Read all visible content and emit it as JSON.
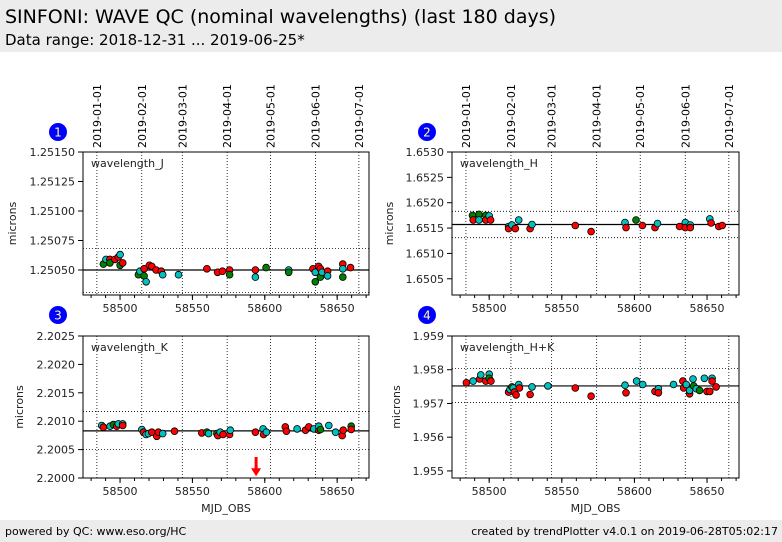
{
  "header": {
    "title": "SINFONI: WAVE QC (nominal wavelengths) (last 180 days)",
    "subtitle": "Data range: 2018-12-31 ... 2019-06-25*"
  },
  "footer": {
    "left": "powered by QC: www.eso.org/HC",
    "right": "created by trendPlotter v4.0.1 on 2019-06-28T05:02:17"
  },
  "colors": {
    "r": "#ff0000",
    "c": "#00c0c0",
    "g": "#008000",
    "badge": "#0000ff",
    "badge_text": "#ffff99",
    "arrow": "#ff0000"
  },
  "date_lines": [
    {
      "label": "2019-01-01",
      "mjd": 58484
    },
    {
      "label": "2019-02-01",
      "mjd": 58515
    },
    {
      "label": "2019-03-01",
      "mjd": 58543
    },
    {
      "label": "2019-04-01",
      "mjd": 58574
    },
    {
      "label": "2019-05-01",
      "mjd": 58604
    },
    {
      "label": "2019-06-01",
      "mjd": 58635
    },
    {
      "label": "2019-07-01",
      "mjd": 58665
    }
  ],
  "chart_data": [
    {
      "type": "scatter",
      "panel": "1",
      "title": "wavelength_J",
      "ylabel": "microns",
      "xlabel": "",
      "xlim": [
        58474.4,
        58672
      ],
      "xticks": [
        58500,
        58550,
        58600,
        58650
      ],
      "ylim": [
        1.250288,
        1.2515
      ],
      "yticks": [
        1.2505,
        1.25075,
        1.251,
        1.25125,
        1.2515
      ],
      "ytick_labels": [
        "1.25050",
        "1.25075",
        "1.25100",
        "1.25125",
        "1.25150"
      ],
      "reference": 1.2505,
      "limits": [
        1.25031,
        1.250683
      ],
      "points": [
        [
          58488.5,
          1.25055,
          "g"
        ],
        [
          58490.3,
          1.25059,
          "c"
        ],
        [
          58493,
          1.25059,
          "r"
        ],
        [
          58493,
          1.25056,
          "g"
        ],
        [
          58496.5,
          1.25059,
          "r"
        ],
        [
          58498.8,
          1.25061,
          "r"
        ],
        [
          58500,
          1.25063,
          "c"
        ],
        [
          58500,
          1.25054,
          "g"
        ],
        [
          58501.8,
          1.25056,
          "r"
        ],
        [
          58512.7,
          1.25046,
          "g"
        ],
        [
          58513.8,
          1.25049,
          "c"
        ],
        [
          58516.6,
          1.25051,
          "r"
        ],
        [
          58516.6,
          1.25045,
          "g"
        ],
        [
          58518,
          1.2504,
          "c"
        ],
        [
          58520.3,
          1.25054,
          "r"
        ],
        [
          58521.9,
          1.25053,
          "r"
        ],
        [
          58524.9,
          1.2505,
          "r"
        ],
        [
          58528.4,
          1.25049,
          "r"
        ],
        [
          58529.5,
          1.25046,
          "c"
        ],
        [
          58540.4,
          1.25046,
          "c"
        ],
        [
          58560,
          1.25051,
          "r"
        ],
        [
          58567.4,
          1.25048,
          "r"
        ],
        [
          58570.8,
          1.25049,
          "r"
        ],
        [
          58575.7,
          1.2505,
          "r"
        ],
        [
          58575.7,
          1.25046,
          "g"
        ],
        [
          58593.5,
          1.2505,
          "r"
        ],
        [
          58593.5,
          1.25044,
          "c"
        ],
        [
          58600.9,
          1.25052,
          "g"
        ],
        [
          58616.5,
          1.2505,
          "c"
        ],
        [
          58616.5,
          1.25048,
          "g"
        ],
        [
          58633.3,
          1.25051,
          "r"
        ],
        [
          58634.9,
          1.25048,
          "c"
        ],
        [
          58634.9,
          1.2504,
          "g"
        ],
        [
          58637.2,
          1.25053,
          "r"
        ],
        [
          58638.4,
          1.25051,
          "r"
        ],
        [
          58638.4,
          1.25044,
          "g"
        ],
        [
          58639.5,
          1.25048,
          "c"
        ],
        [
          58643.4,
          1.25049,
          "r"
        ],
        [
          58643.4,
          1.25045,
          "c"
        ],
        [
          58653.9,
          1.25055,
          "r"
        ],
        [
          58653.9,
          1.25051,
          "c"
        ],
        [
          58653.9,
          1.25044,
          "g"
        ],
        [
          58659.2,
          1.25052,
          "r"
        ]
      ]
    },
    {
      "type": "scatter",
      "panel": "2",
      "title": "wavelength_H",
      "ylabel": "microns",
      "xlabel": "",
      "xlim": [
        58474.4,
        58672
      ],
      "xticks": [
        58500,
        58550,
        58600,
        58650
      ],
      "ylim": [
        1.65018,
        1.653
      ],
      "yticks": [
        1.6505,
        1.651,
        1.6515,
        1.652,
        1.6525,
        1.653
      ],
      "ytick_labels": [
        "1.6505",
        "1.6510",
        "1.6515",
        "1.6520",
        "1.6525",
        "1.6530"
      ],
      "reference": 1.65157,
      "limits": [
        1.65131,
        1.65183
      ],
      "points": [
        [
          58488.5,
          1.65175,
          "g"
        ],
        [
          58489,
          1.65166,
          "r"
        ],
        [
          58493,
          1.65177,
          "g"
        ],
        [
          58493,
          1.65166,
          "c"
        ],
        [
          58497.7,
          1.65175,
          "g"
        ],
        [
          58497.7,
          1.65166,
          "r"
        ],
        [
          58500,
          1.65174,
          "c"
        ],
        [
          58501,
          1.65166,
          "r"
        ],
        [
          58513.4,
          1.65153,
          "c"
        ],
        [
          58513.4,
          1.65149,
          "r"
        ],
        [
          58515.7,
          1.65156,
          "c"
        ],
        [
          58518,
          1.65149,
          "r"
        ],
        [
          58520.3,
          1.65166,
          "c"
        ],
        [
          58528.2,
          1.65149,
          "r"
        ],
        [
          58529.5,
          1.65157,
          "c"
        ],
        [
          58559.3,
          1.65155,
          "r"
        ],
        [
          58570.2,
          1.65143,
          "r"
        ],
        [
          58593.5,
          1.65161,
          "c"
        ],
        [
          58594.2,
          1.65151,
          "r"
        ],
        [
          58601.1,
          1.65166,
          "g"
        ],
        [
          58605.5,
          1.65155,
          "r"
        ],
        [
          58614.2,
          1.65151,
          "r"
        ],
        [
          58615.9,
          1.65159,
          "c"
        ],
        [
          58631.1,
          1.65153,
          "r"
        ],
        [
          58635,
          1.65161,
          "c"
        ],
        [
          58635,
          1.65151,
          "r"
        ],
        [
          58638.5,
          1.65156,
          "c"
        ],
        [
          58638.5,
          1.65151,
          "r"
        ],
        [
          58651.9,
          1.65168,
          "c"
        ],
        [
          58652.8,
          1.6516,
          "r"
        ],
        [
          58658.1,
          1.65153,
          "r"
        ],
        [
          58660.4,
          1.65155,
          "r"
        ]
      ]
    },
    {
      "type": "scatter",
      "panel": "3",
      "title": "wavelength_K",
      "ylabel": "microns",
      "xlabel": "MJD_OBS",
      "xlim": [
        58474.4,
        58672
      ],
      "xticks": [
        58500,
        58550,
        58600,
        58650
      ],
      "ylim": [
        2.2,
        2.2025
      ],
      "yticks": [
        2.2,
        2.2005,
        2.201,
        2.2015,
        2.202,
        2.2025
      ],
      "ytick_labels": [
        "2.2000",
        "2.2005",
        "2.2010",
        "2.2015",
        "2.2020",
        "2.2025"
      ],
      "reference": 2.20083,
      "limits": [
        2.2005,
        2.20117
      ],
      "arrow": {
        "mjd": 58594,
        "from": 2.20037,
        "to": 2.20003
      },
      "points": [
        [
          58487.3,
          2.200924,
          "c"
        ],
        [
          58488.5,
          2.200894,
          "r"
        ],
        [
          58493.1,
          2.200912,
          "c"
        ],
        [
          58495.4,
          2.200941,
          "g"
        ],
        [
          58497.7,
          2.200912,
          "r"
        ],
        [
          58498.8,
          2.200953,
          "c"
        ],
        [
          58501.8,
          2.200953,
          "c"
        ],
        [
          58501.8,
          2.200924,
          "r"
        ],
        [
          58515,
          2.200853,
          "c"
        ],
        [
          58516.2,
          2.200806,
          "r"
        ],
        [
          58518,
          2.200765,
          "c"
        ],
        [
          58519.6,
          2.200782,
          "c"
        ],
        [
          58521.9,
          2.200806,
          "r"
        ],
        [
          58525.4,
          2.200735,
          "r"
        ],
        [
          58526.5,
          2.200806,
          "r"
        ],
        [
          58529.5,
          2.200782,
          "c"
        ],
        [
          58537.6,
          2.200824,
          "r"
        ],
        [
          58556.5,
          2.200794,
          "r"
        ],
        [
          58560,
          2.200806,
          "g"
        ],
        [
          58561.2,
          2.200782,
          "c"
        ],
        [
          58566.9,
          2.200782,
          "g"
        ],
        [
          58567.6,
          2.200747,
          "r"
        ],
        [
          58569.2,
          2.200806,
          "c"
        ],
        [
          58571.1,
          2.200765,
          "r"
        ],
        [
          58575.7,
          2.200765,
          "r"
        ],
        [
          58576.2,
          2.200841,
          "c"
        ],
        [
          58593.5,
          2.200806,
          "r"
        ],
        [
          58598.8,
          2.200865,
          "c"
        ],
        [
          58599.2,
          2.200765,
          "r"
        ],
        [
          58601.1,
          2.200806,
          "c"
        ],
        [
          58614.2,
          2.2009,
          "r"
        ],
        [
          58614.9,
          2.200824,
          "r"
        ],
        [
          58622.3,
          2.200865,
          "c"
        ],
        [
          58628.1,
          2.200841,
          "r"
        ],
        [
          58630.4,
          2.2009,
          "r"
        ],
        [
          58633.9,
          2.200865,
          "c"
        ],
        [
          58637.3,
          2.200841,
          "r"
        ],
        [
          58637.3,
          2.200912,
          "c"
        ],
        [
          58638.5,
          2.200853,
          "g"
        ],
        [
          58644.2,
          2.200924,
          "c"
        ],
        [
          58648.9,
          2.200806,
          "c"
        ],
        [
          58653.5,
          2.200747,
          "r"
        ],
        [
          58654.2,
          2.200841,
          "r"
        ],
        [
          58659.7,
          2.200912,
          "g"
        ],
        [
          58659.7,
          2.200853,
          "r"
        ]
      ]
    },
    {
      "type": "scatter",
      "panel": "4",
      "title": "wavelength_H+K",
      "ylabel": "microns",
      "xlabel": "MJD_OBS",
      "xlim": [
        58474.4,
        58672
      ],
      "xticks": [
        58500,
        58550,
        58600,
        58650
      ],
      "ylim": [
        1.95479,
        1.959
      ],
      "yticks": [
        1.955,
        1.956,
        1.957,
        1.958,
        1.959
      ],
      "ytick_labels": [
        "1.955",
        "1.956",
        "1.957",
        "1.958",
        "1.959"
      ],
      "reference": 1.95752,
      "limits": [
        1.95703,
        1.95804
      ],
      "points": [
        [
          58484.3,
          1.957612,
          "r"
        ],
        [
          58488.9,
          1.957663,
          "c"
        ],
        [
          58493.5,
          1.957724,
          "r"
        ],
        [
          58494.2,
          1.957847,
          "c"
        ],
        [
          58497.7,
          1.957663,
          "r"
        ],
        [
          58500,
          1.957867,
          "c"
        ],
        [
          58500,
          1.957745,
          "g"
        ],
        [
          58501.2,
          1.957663,
          "r"
        ],
        [
          58513.4,
          1.957337,
          "r"
        ],
        [
          58514.3,
          1.957418,
          "c"
        ],
        [
          58515.7,
          1.95749,
          "g"
        ],
        [
          58516.6,
          1.957459,
          "c"
        ],
        [
          58517.3,
          1.957337,
          "r"
        ],
        [
          58518.5,
          1.957255,
          "r"
        ],
        [
          58520.3,
          1.957561,
          "c"
        ],
        [
          58520.8,
          1.957459,
          "r"
        ],
        [
          58528.2,
          1.957265,
          "r"
        ],
        [
          58529.5,
          1.95749,
          "c"
        ],
        [
          58540.4,
          1.95752,
          "c"
        ],
        [
          58559.3,
          1.957459,
          "r"
        ],
        [
          58570.2,
          1.957214,
          "r"
        ],
        [
          58593.5,
          1.957541,
          "c"
        ],
        [
          58594.2,
          1.957316,
          "r"
        ],
        [
          58601.5,
          1.957663,
          "c"
        ],
        [
          58605.7,
          1.957561,
          "c"
        ],
        [
          58614.2,
          1.957357,
          "r"
        ],
        [
          58616.5,
          1.957439,
          "c"
        ],
        [
          58616.5,
          1.957316,
          "r"
        ],
        [
          58626.9,
          1.957561,
          "c"
        ],
        [
          58633.4,
          1.957663,
          "r"
        ],
        [
          58633.9,
          1.957459,
          "r"
        ],
        [
          58635.7,
          1.957561,
          "c"
        ],
        [
          58638,
          1.957286,
          "r"
        ],
        [
          58638,
          1.957388,
          "c"
        ],
        [
          58640.3,
          1.957724,
          "c"
        ],
        [
          58640.8,
          1.95752,
          "g"
        ],
        [
          58642.6,
          1.957439,
          "c"
        ],
        [
          58644.9,
          1.957388,
          "g"
        ],
        [
          58648.2,
          1.957745,
          "c"
        ],
        [
          58650,
          1.957357,
          "r"
        ],
        [
          58651.9,
          1.957357,
          "r"
        ],
        [
          58653.5,
          1.957745,
          "c"
        ],
        [
          58653.5,
          1.957663,
          "r"
        ],
        [
          58656.2,
          1.95749,
          "r"
        ]
      ]
    }
  ]
}
